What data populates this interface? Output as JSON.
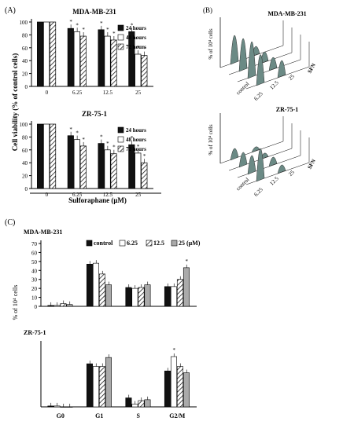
{
  "panels": {
    "a": "(A)",
    "b": "(B)",
    "c": "(C)"
  },
  "panel_a": {
    "ylabel": "Cell viability (% of control cells)",
    "xlabel": "Sulforaphane (μM)",
    "yticks": [
      "0",
      "20",
      "40",
      "60",
      "80",
      "100"
    ]
  },
  "panel_b": {
    "top_title": "MDA-MB-231",
    "bottom_title": "ZR-75-1",
    "ylabel": "% of 10⁴ cells",
    "depth_labels": [
      "control",
      "6.25",
      "12.5",
      "25"
    ],
    "axis_label": "SFN"
  },
  "panel_c": {
    "ylabel": "% of 10⁴ cells",
    "legend": [
      "control",
      "6.25",
      "12.5",
      "25 (μM)"
    ],
    "yticks": [
      "0",
      "10",
      "20",
      "30",
      "40",
      "50",
      "60",
      "70"
    ]
  },
  "chart_data": [
    {
      "type": "bar",
      "title": "MDA-MB-231",
      "categories": [
        "0",
        "6.25",
        "12.5",
        "25"
      ],
      "xlabel": "Sulforaphane (μM)",
      "ylabel": "Cell viability (% of control cells)",
      "ylim": [
        0,
        100
      ],
      "series": [
        {
          "name": "24 hours",
          "values": [
            100,
            90,
            88,
            85
          ]
        },
        {
          "name": "48 hours",
          "values": [
            100,
            85,
            78,
            50
          ]
        },
        {
          "name": "72 hours",
          "values": [
            100,
            78,
            72,
            48
          ]
        }
      ],
      "annotations": [
        "*"
      ]
    },
    {
      "type": "bar",
      "title": "ZR-75-1",
      "categories": [
        "0",
        "6.25",
        "12.5",
        "25"
      ],
      "xlabel": "Sulforaphane (μM)",
      "ylabel": "Cell viability (% of control cells)",
      "ylim": [
        0,
        100
      ],
      "series": [
        {
          "name": "24 hours",
          "values": [
            100,
            82,
            70,
            68
          ]
        },
        {
          "name": "48 hours",
          "values": [
            100,
            76,
            60,
            55
          ]
        },
        {
          "name": "72 hours",
          "values": [
            100,
            66,
            54,
            40
          ]
        }
      ],
      "annotations": [
        "*"
      ]
    },
    {
      "type": "bar",
      "title": "MDA-MB-231",
      "categories": [
        "G0",
        "G1",
        "S",
        "G2/M"
      ],
      "ylabel": "% of 10⁴ cells",
      "ylim": [
        0,
        70
      ],
      "series": [
        {
          "name": "control",
          "values": [
            1,
            47,
            21,
            22
          ]
        },
        {
          "name": "6.25",
          "values": [
            1,
            48,
            20,
            22
          ]
        },
        {
          "name": "12.5",
          "values": [
            3,
            36,
            21,
            30
          ]
        },
        {
          "name": "25 (μM)",
          "values": [
            2,
            24,
            24,
            43
          ]
        }
      ],
      "annotations": [
        "*"
      ]
    },
    {
      "type": "bar",
      "title": "ZR-75-1",
      "categories": [
        "G0",
        "G1",
        "S",
        "G2/M"
      ],
      "ylabel": "% of 10⁴ cells",
      "ylim": [
        0,
        70
      ],
      "series": [
        {
          "name": "control",
          "values": [
            1,
            48,
            10,
            40
          ]
        },
        {
          "name": "6.25",
          "values": [
            1,
            45,
            3,
            56
          ]
        },
        {
          "name": "12.5",
          "values": [
            0,
            45,
            7,
            45
          ]
        },
        {
          "name": "25 (μM)",
          "values": [
            0,
            55,
            8,
            38
          ]
        }
      ],
      "annotations": [
        "*"
      ]
    }
  ]
}
